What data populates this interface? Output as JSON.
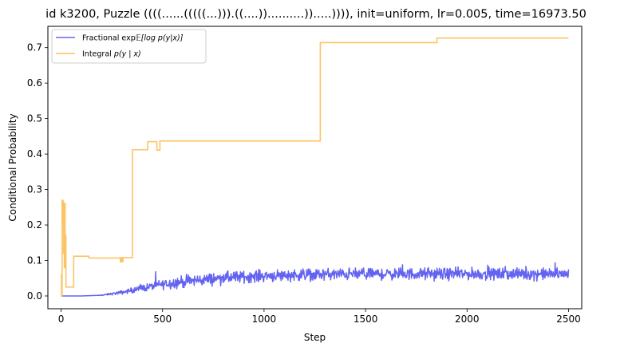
{
  "chart_data": {
    "type": "line",
    "title": "id k3200, Puzzle ((((......(((((...))).((....))..........)).....)))), init=uniform, lr=0.005, time=16973.50",
    "xlabel": "Step",
    "ylabel": "Conditional Probability",
    "xlim": [
      -65,
      2565
    ],
    "ylim": [
      -0.036,
      0.76
    ],
    "xticks": [
      0,
      500,
      1000,
      1500,
      2000,
      2500
    ],
    "yticks": [
      0.0,
      0.1,
      0.2,
      0.3,
      0.4,
      0.5,
      0.6,
      0.7
    ],
    "xtick_labels": [
      "0",
      "500",
      "1000",
      "1500",
      "2000",
      "2500"
    ],
    "ytick_labels": [
      "0.0",
      "0.1",
      "0.2",
      "0.3",
      "0.4",
      "0.5",
      "0.6",
      "0.7"
    ],
    "legend_position": "top-left",
    "series": [
      {
        "name": "Fractional",
        "legend_prefix": "Fractional exp",
        "legend_math": "𝔼[log p(y|x)]",
        "color": "#5b5bf0",
        "style": "noisy-ramp",
        "trend": [
          [
            0,
            0.0
          ],
          [
            100,
            0.0
          ],
          [
            200,
            0.002
          ],
          [
            300,
            0.01
          ],
          [
            400,
            0.022
          ],
          [
            500,
            0.033
          ],
          [
            600,
            0.04
          ],
          [
            700,
            0.046
          ],
          [
            800,
            0.051
          ],
          [
            1000,
            0.057
          ],
          [
            1200,
            0.06
          ],
          [
            1500,
            0.062
          ],
          [
            2000,
            0.062
          ],
          [
            2500,
            0.062
          ]
        ],
        "noise_amplitude": 0.013,
        "noise_start": 170,
        "final_value": 0.075
      },
      {
        "name": "Integral",
        "legend_prefix": "Integral",
        "legend_math": "p(y | x)",
        "color": "#fbc15e",
        "style": "step",
        "points": [
          [
            0,
            0.0
          ],
          [
            2,
            0.06
          ],
          [
            3,
            0.0
          ],
          [
            5,
            0.27
          ],
          [
            8,
            0.2
          ],
          [
            10,
            0.267
          ],
          [
            12,
            0.12
          ],
          [
            14,
            0.26
          ],
          [
            16,
            0.08
          ],
          [
            18,
            0.26
          ],
          [
            20,
            0.1
          ],
          [
            22,
            0.17
          ],
          [
            24,
            0.03
          ],
          [
            25,
            0.025
          ],
          [
            60,
            0.025
          ],
          [
            62,
            0.112
          ],
          [
            135,
            0.112
          ],
          [
            137,
            0.107
          ],
          [
            290,
            0.107
          ],
          [
            292,
            0.096
          ],
          [
            298,
            0.108
          ],
          [
            300,
            0.097
          ],
          [
            305,
            0.108
          ],
          [
            350,
            0.108
          ],
          [
            352,
            0.412
          ],
          [
            425,
            0.412
          ],
          [
            427,
            0.435
          ],
          [
            470,
            0.435
          ],
          [
            472,
            0.411
          ],
          [
            485,
            0.411
          ],
          [
            487,
            0.437
          ],
          [
            1275,
            0.437
          ],
          [
            1277,
            0.714
          ],
          [
            1850,
            0.714
          ],
          [
            1852,
            0.727
          ],
          [
            2500,
            0.727
          ]
        ]
      }
    ]
  }
}
